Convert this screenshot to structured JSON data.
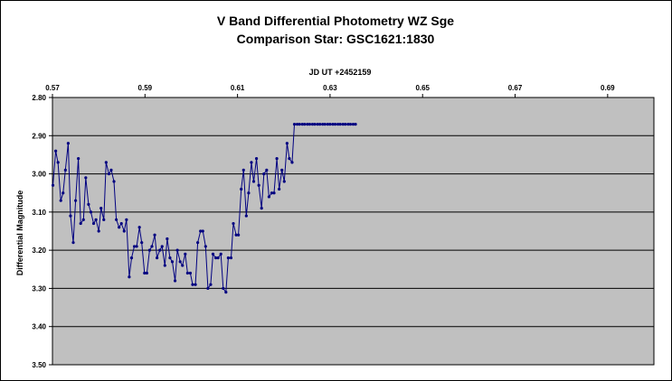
{
  "chart_data": {
    "type": "line",
    "title": "V Band Differential Photometry WZ Sge",
    "subtitle": "Comparison Star: GSC1621:1830",
    "xlabel": "JD UT +2452159",
    "ylabel": "Differential Magnitude",
    "xlim": [
      0.57,
      0.7
    ],
    "ylim": [
      2.8,
      3.5
    ],
    "y_reversed": true,
    "x_axis_position": "top",
    "x_ticks": [
      "0.57",
      "0.59",
      "0.61",
      "0.63",
      "0.65",
      "0.67",
      "0.69"
    ],
    "y_ticks": [
      "2.80",
      "2.90",
      "3.00",
      "3.10",
      "3.20",
      "3.30",
      "3.40",
      "3.50"
    ],
    "grid": "horizontal",
    "plot_background": "#c0c0c0",
    "series_color": "#000080",
    "series": [
      {
        "x": [
          0.5701,
          0.5707,
          0.5712,
          0.5718,
          0.5723,
          0.5728,
          0.5734,
          0.5739,
          0.5745,
          0.575,
          0.5756,
          0.5761,
          0.5767,
          0.5772,
          0.5778,
          0.5783,
          0.5789,
          0.5794,
          0.58,
          0.5805,
          0.5811,
          0.5816,
          0.5822,
          0.5827,
          0.5833,
          0.5838,
          0.5844,
          0.5849,
          0.5855,
          0.586,
          0.5866,
          0.5871,
          0.5877,
          0.5882,
          0.5888,
          0.5893,
          0.5899,
          0.5904,
          0.591,
          0.5915,
          0.5921,
          0.5926,
          0.5932,
          0.5937,
          0.5943,
          0.5948,
          0.5954,
          0.5959,
          0.5965,
          0.597,
          0.5976,
          0.5981,
          0.5987,
          0.5992,
          0.5998,
          0.6003,
          0.6009,
          0.6014,
          0.602,
          0.6025,
          0.6031,
          0.6036,
          0.6042,
          0.6047,
          0.6053,
          0.6058,
          0.6064,
          0.6069,
          0.6075,
          0.608,
          0.6086,
          0.6091,
          0.6097,
          0.6102,
          0.6108,
          0.6113,
          0.6119,
          0.6124,
          0.613,
          0.6135,
          0.6141,
          0.6146,
          0.6152,
          0.6157,
          0.6163,
          0.6168,
          0.6174,
          0.6179,
          0.6185,
          0.619,
          0.6196,
          0.6201,
          0.6207,
          0.6212,
          0.6218,
          0.6223,
          0.6229,
          0.6234,
          0.624,
          0.6245,
          0.6251,
          0.6256,
          0.6262,
          0.6267,
          0.6273,
          0.6278,
          0.6284,
          0.6289,
          0.6295,
          0.63,
          0.6306,
          0.6311,
          0.6317,
          0.6322,
          0.6328,
          0.6333,
          0.6339,
          0.6344,
          0.635,
          0.6355
        ],
        "y": [
          3.03,
          2.94,
          2.97,
          3.07,
          3.05,
          2.99,
          2.92,
          3.11,
          3.18,
          3.07,
          2.96,
          3.13,
          3.12,
          3.01,
          3.08,
          3.1,
          3.13,
          3.12,
          3.15,
          3.09,
          3.12,
          2.97,
          3.0,
          2.99,
          3.02,
          3.12,
          3.14,
          3.13,
          3.15,
          3.12,
          3.27,
          3.22,
          3.19,
          3.19,
          3.14,
          3.18,
          3.26,
          3.26,
          3.2,
          3.19,
          3.16,
          3.22,
          3.2,
          3.19,
          3.24,
          3.17,
          3.22,
          3.23,
          3.28,
          3.2,
          3.23,
          3.24,
          3.21,
          3.26,
          3.26,
          3.29,
          3.29,
          3.18,
          3.15,
          3.15,
          3.19,
          3.3,
          3.29,
          3.21,
          3.22,
          3.22,
          3.21,
          3.3,
          3.31,
          3.22,
          3.22,
          3.13,
          3.16,
          3.16,
          3.04,
          2.99,
          3.11,
          3.05,
          2.97,
          3.02,
          2.96,
          3.03,
          3.09,
          3.0,
          2.99,
          3.06,
          3.05,
          3.05,
          2.96,
          3.04,
          2.99,
          3.02,
          2.92,
          2.96,
          2.97,
          2.87,
          2.87,
          2.87,
          2.87,
          2.87,
          2.87,
          2.87,
          2.87,
          2.87,
          2.87,
          2.87,
          2.87,
          2.87,
          2.87,
          2.87,
          2.87,
          2.87,
          2.87,
          2.87,
          2.87,
          2.87,
          2.87,
          2.87,
          2.87,
          2.87
        ]
      }
    ]
  }
}
